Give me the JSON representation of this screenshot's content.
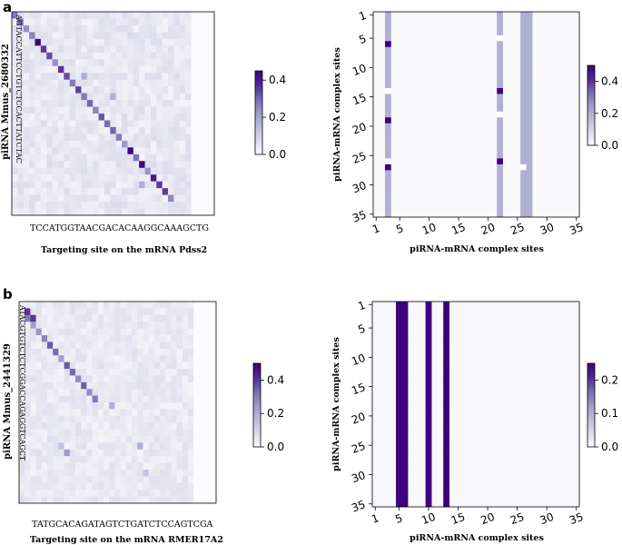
{
  "figure": {
    "panels": [
      {
        "letter": "a",
        "heatmap": {
          "ylabel": "piRNA Mmus_2680332",
          "ysequence": "AGTACCATTCCTGTCTCCACTTATCTAC",
          "xsequence": "TCCATGGTAACGACACAAGGCAAAGCTG",
          "xlabel": "Targeting site on the mRNA Pdss2",
          "colorbar_ticks": [
            "0.4",
            "0.2",
            "0.0"
          ]
        },
        "complex": {
          "xlabel": "piRNA-mRNA complex sites",
          "ylabel": "piRNA-mRNA complex sites",
          "x_ticks": [
            "1",
            "5",
            "10",
            "15",
            "20",
            "25",
            "30",
            "35"
          ],
          "y_ticks": [
            "1",
            "5",
            "10",
            "15",
            "20",
            "25",
            "30",
            "35"
          ],
          "colorbar_ticks": [
            "0.4",
            "0.2",
            "0.0"
          ]
        }
      },
      {
        "letter": "b",
        "heatmap": {
          "ylabel": "piRNA Mmus_2441329",
          "ysequence": "ATACGTGTCTCTCGGACCAGAGGTCAGCT",
          "xsequence": "TATGCACAGATAGTCTGATCTCCAGTCGA",
          "xlabel": "Targeting site on the mRNA RMER17A2",
          "colorbar_ticks": [
            "0.4",
            "0.2",
            "0.0"
          ]
        },
        "complex": {
          "xlabel": "piRNA-mRNA complex sites",
          "ylabel": "piRNA-mRNA complex sites",
          "x_ticks": [
            "1",
            "5",
            "10",
            "15",
            "20",
            "25",
            "30",
            "35"
          ],
          "y_ticks": [
            "1",
            "5",
            "10",
            "15",
            "20",
            "25",
            "30",
            "35"
          ],
          "colorbar_ticks": [
            "0.2",
            "0.1",
            "0.0"
          ]
        }
      }
    ]
  },
  "chart_data": [
    {
      "type": "heatmap",
      "title": "",
      "xlabel": "Targeting site on the mRNA Pdss2",
      "ylabel": "piRNA Mmus_2680332",
      "rows": 30,
      "cols": 35,
      "colorbar": [
        0.0,
        0.45
      ],
      "background_value": 0.02,
      "diagonal": {
        "start_col": 0,
        "end_col": 27,
        "value": 0.3
      },
      "strong_cells": [
        [
          4,
          4,
          0.45
        ],
        [
          20,
          20,
          0.45
        ],
        [
          22,
          22,
          0.45
        ],
        [
          24,
          24,
          0.4
        ],
        [
          26,
          26,
          0.35
        ]
      ],
      "medium_cells": [
        [
          9,
          12,
          0.18
        ],
        [
          12,
          17,
          0.18
        ],
        [
          25,
          22,
          0.18
        ]
      ]
    },
    {
      "type": "heatmap",
      "title": "",
      "xlabel": "piRNA-mRNA complex sites",
      "ylabel": "piRNA-mRNA complex sites",
      "rows": 35,
      "cols": 35,
      "xlim": [
        1,
        35
      ],
      "ylim": [
        1,
        35
      ],
      "colorbar": [
        0.0,
        0.5
      ],
      "columns": [
        {
          "col": 3,
          "value": 0.2,
          "high_rows": [
            6,
            19,
            27
          ],
          "high_value": 0.5,
          "gap_rows": [
            14,
            26
          ]
        },
        {
          "col": 22,
          "value": 0.2,
          "high_rows": [
            14,
            26
          ],
          "high_value": 0.5,
          "gap_rows": [
            5,
            18
          ]
        },
        {
          "col": 26,
          "value": 0.2,
          "high_rows": [],
          "high_value": 0.5,
          "gap_rows": [
            27
          ]
        },
        {
          "col": 27,
          "value": 0.2,
          "high_rows": [],
          "high_value": 0.5,
          "gap_rows": []
        }
      ]
    },
    {
      "type": "heatmap",
      "title": "",
      "xlabel": "Targeting site on the mRNA RMER17A2",
      "ylabel": "piRNA Mmus_2441329",
      "rows": 30,
      "cols": 35,
      "colorbar": [
        0.0,
        0.5
      ],
      "background_value": 0.02,
      "diagonal": {
        "start_col": 1,
        "end_col": 13,
        "value": 0.3
      },
      "strong_cells": [
        [
          1,
          1,
          0.4
        ],
        [
          2,
          2,
          0.4
        ]
      ],
      "medium_cells": [
        [
          15,
          16,
          0.2
        ],
        [
          21,
          21,
          0.2
        ],
        [
          25,
          22,
          0.15
        ],
        [
          21,
          7,
          0.15
        ],
        [
          22,
          8,
          0.25
        ]
      ]
    },
    {
      "type": "heatmap",
      "title": "",
      "xlabel": "piRNA-mRNA complex sites",
      "ylabel": "piRNA-mRNA complex sites",
      "rows": 35,
      "cols": 35,
      "xlim": [
        1,
        35
      ],
      "ylim": [
        1,
        35
      ],
      "colorbar": [
        0.0,
        0.25
      ],
      "columns": [
        {
          "col": 5,
          "value": 0.25
        },
        {
          "col": 6,
          "value": 0.25
        },
        {
          "col": 10,
          "value": 0.25
        },
        {
          "col": 13,
          "value": 0.25
        }
      ]
    }
  ]
}
